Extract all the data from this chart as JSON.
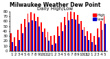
{
  "title": "Milwaukee Weather Dew Point",
  "subtitle": "Daily High/Low",
  "months": [
    "1",
    "2",
    "3",
    "4",
    "5",
    "6",
    "7",
    "8",
    "9",
    "10",
    "11",
    "12",
    "1",
    "2",
    "3",
    "4",
    "5",
    "6",
    "7",
    "8",
    "9",
    "10",
    "11",
    "12",
    "1",
    "2",
    "3",
    "4",
    "5"
  ],
  "high_values": [
    35,
    28,
    42,
    55,
    65,
    75,
    78,
    76,
    68,
    58,
    45,
    38,
    30,
    32,
    50,
    58,
    68,
    78,
    80,
    78,
    72,
    60,
    48,
    40,
    35,
    30,
    45,
    60,
    70
  ],
  "low_values": [
    18,
    10,
    22,
    35,
    48,
    58,
    62,
    60,
    50,
    38,
    28,
    20,
    12,
    15,
    30,
    40,
    52,
    62,
    65,
    63,
    55,
    42,
    30,
    22,
    18,
    12,
    28,
    42,
    55
  ],
  "bar_width": 0.38,
  "high_color": "#ff0000",
  "low_color": "#0000cc",
  "background_color": "#ffffff",
  "ylim": [
    0,
    80
  ],
  "yticks": [
    0,
    10,
    20,
    30,
    40,
    50,
    60,
    70,
    80
  ],
  "legend_high": "High",
  "legend_low": "Low",
  "title_fontsize": 5.5,
  "tick_fontsize": 4
}
